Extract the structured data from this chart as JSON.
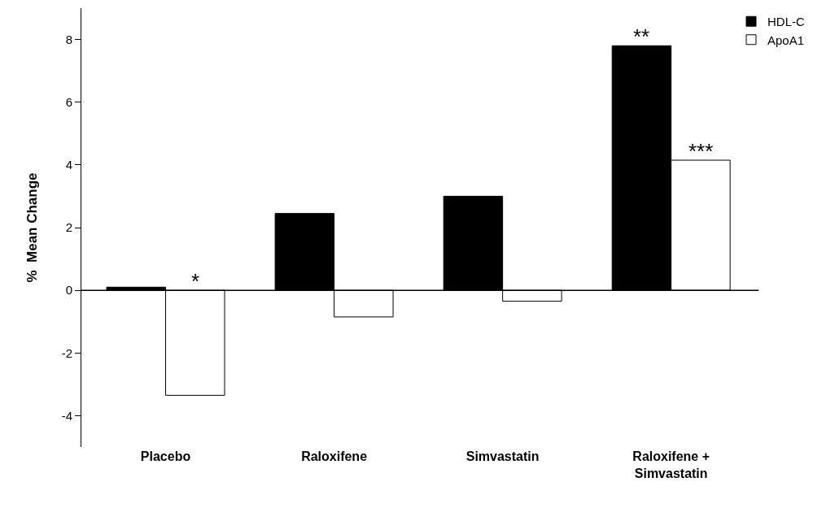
{
  "chart_data": {
    "type": "bar",
    "ylabel": "%  Mean Change",
    "categories": [
      "Placebo",
      "Raloxifene",
      "Simvastatin",
      "Raloxifene + Simvastatin"
    ],
    "series": [
      {
        "name": "HDL-C",
        "color": "#000000",
        "values": [
          0.1,
          2.45,
          3.0,
          7.8
        ]
      },
      {
        "name": "ApoA1",
        "color": "#ffffff",
        "values": [
          -3.35,
          -0.85,
          -0.35,
          4.15
        ]
      }
    ],
    "ref_lines": [
      {
        "axis": "y",
        "value": 0,
        "color": "#000000",
        "line_style": "solid"
      }
    ],
    "ylim": [
      -5,
      9
    ],
    "yticks": [
      -4,
      -2,
      0,
      2,
      4,
      6,
      8
    ],
    "grid": false,
    "legend": "top right",
    "annotations": [
      {
        "text": "*",
        "x": "Placebo",
        "y": 0
      },
      {
        "text": "**",
        "x": "Raloxifene + Simvastatin",
        "y": 7.8
      },
      {
        "text": "***",
        "x": "Raloxifene + Simvastatin",
        "y": 4.15
      }
    ]
  }
}
